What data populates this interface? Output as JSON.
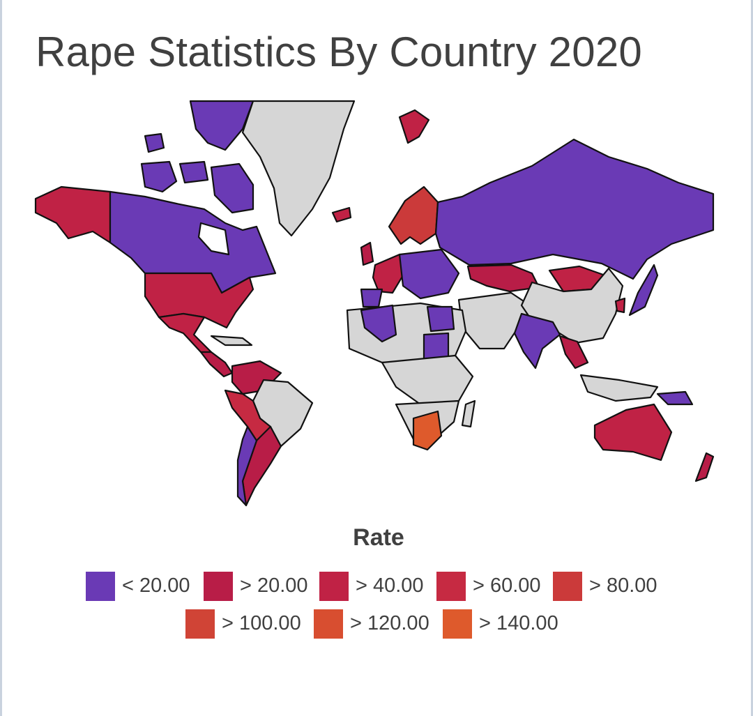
{
  "title": "Rape Statistics By Country 2020",
  "map": {
    "type": "choropleth",
    "no_data_color": "#d6d6d6",
    "border_color": "#111111"
  },
  "legend": {
    "title": "Rate",
    "items": [
      {
        "label": "< 20.00",
        "color": "#6a3ab5"
      },
      {
        "label": "> 20.00",
        "color": "#b81d47"
      },
      {
        "label": "> 40.00",
        "color": "#c02245"
      },
      {
        "label": "> 60.00",
        "color": "#c62a42"
      },
      {
        "label": "> 80.00",
        "color": "#cb3a3a"
      },
      {
        "label": "> 100.00",
        "color": "#d04436"
      },
      {
        "label": "> 120.00",
        "color": "#d84e30"
      },
      {
        "label": "> 140.00",
        "color": "#de5a2c"
      }
    ]
  }
}
